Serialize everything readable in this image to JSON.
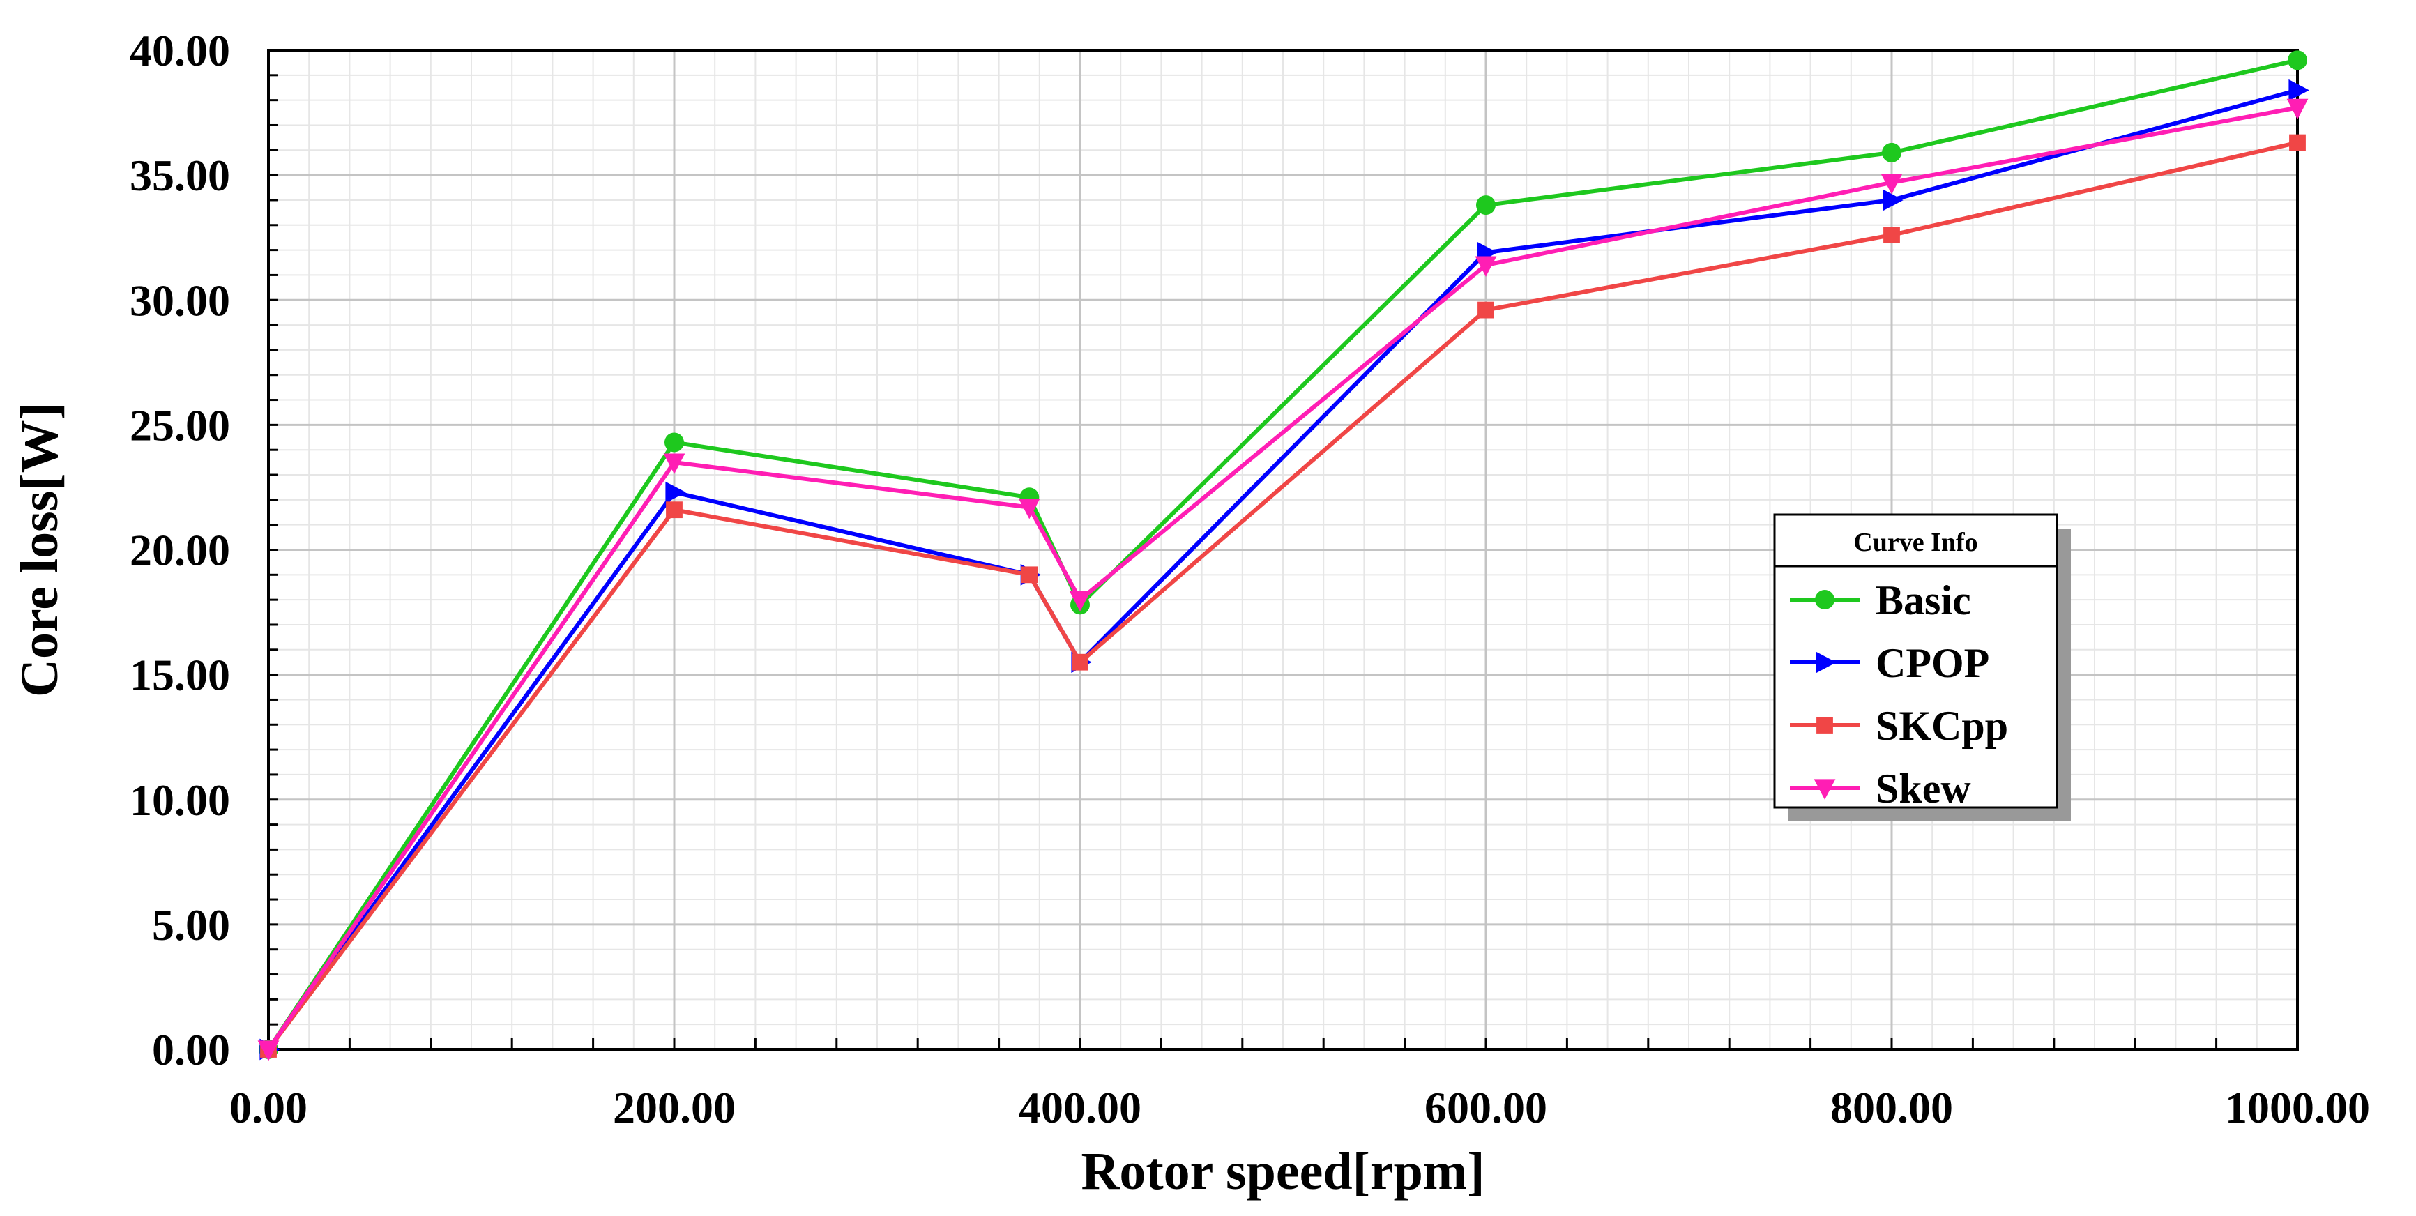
{
  "chart_data": {
    "type": "line",
    "xlabel": "Rotor speed[rpm]",
    "ylabel": "Core loss[W]",
    "xlim": [
      0,
      1000
    ],
    "ylim": [
      0,
      40
    ],
    "xticks": [
      0,
      200,
      400,
      600,
      800,
      1000
    ],
    "xtick_labels": [
      "0.00",
      "200.00",
      "400.00",
      "600.00",
      "800.00",
      "1000.00"
    ],
    "yticks": [
      0,
      5,
      10,
      15,
      20,
      25,
      30,
      35,
      40
    ],
    "ytick_labels": [
      "0.00",
      "5.00",
      "10.00",
      "15.00",
      "20.00",
      "25.00",
      "30.00",
      "35.00",
      "40.00"
    ],
    "grid": true,
    "legend": {
      "title": "Curve Info",
      "placement": "right"
    },
    "series": [
      {
        "name": "Basic",
        "color": "#1ec81e",
        "marker": "circle",
        "x": [
          0,
          200,
          375,
          400,
          600,
          800,
          1000
        ],
        "y": [
          0,
          24.3,
          22.1,
          17.8,
          33.8,
          35.9,
          39.6
        ]
      },
      {
        "name": "CPOP",
        "color": "#0000ff",
        "marker": "triangle-right",
        "x": [
          0,
          200,
          375,
          400,
          600,
          800,
          1000
        ],
        "y": [
          0,
          22.3,
          19.0,
          15.5,
          31.9,
          34.0,
          38.4
        ]
      },
      {
        "name": "SKCpp",
        "color": "#f04646",
        "marker": "square",
        "x": [
          0,
          200,
          375,
          400,
          600,
          800,
          1000
        ],
        "y": [
          0,
          21.6,
          19.0,
          15.5,
          29.6,
          32.6,
          36.3
        ]
      },
      {
        "name": "Skew",
        "color": "#ff1eb4",
        "marker": "triangle-down",
        "x": [
          0,
          200,
          375,
          400,
          600,
          800,
          1000
        ],
        "y": [
          0,
          23.5,
          21.7,
          18.0,
          31.4,
          34.7,
          37.7
        ]
      }
    ]
  }
}
